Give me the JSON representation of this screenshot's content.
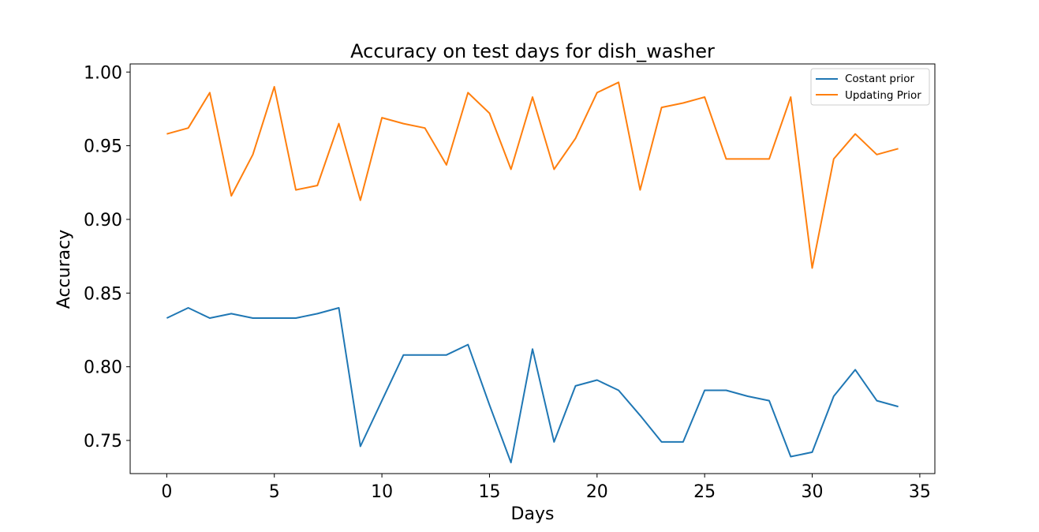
{
  "chart_data": {
    "type": "line",
    "title": "Accuracy on test days for dish_washer",
    "xlabel": "Days",
    "ylabel": "Accuracy",
    "xlim": [
      -1.7,
      35.7
    ],
    "ylim": [
      0.7275,
      1.0055
    ],
    "xticks": [
      0,
      5,
      10,
      15,
      20,
      25,
      30,
      35
    ],
    "yticks": [
      0.75,
      0.8,
      0.85,
      0.9,
      0.95,
      1.0
    ],
    "ytick_labels": [
      "0.75",
      "0.80",
      "0.85",
      "0.90",
      "0.95",
      "1.00"
    ],
    "grid": false,
    "legend_position": "top-right",
    "x": [
      0,
      1,
      2,
      3,
      4,
      5,
      6,
      7,
      8,
      9,
      10,
      11,
      12,
      13,
      14,
      15,
      16,
      17,
      18,
      19,
      20,
      21,
      22,
      23,
      24,
      25,
      26,
      27,
      28,
      29,
      30,
      31,
      32,
      33,
      34
    ],
    "series": [
      {
        "name": "Costant prior",
        "color": "#1f77b4",
        "values": [
          0.833,
          0.84,
          0.833,
          0.836,
          0.833,
          0.833,
          0.833,
          0.836,
          0.84,
          0.746,
          0.777,
          0.808,
          0.808,
          0.808,
          0.815,
          0.774,
          0.735,
          0.812,
          0.749,
          0.787,
          0.791,
          0.784,
          0.767,
          0.749,
          0.749,
          0.784,
          0.784,
          0.78,
          0.777,
          0.739,
          0.742,
          0.78,
          0.798,
          0.777,
          0.773
        ]
      },
      {
        "name": "Updating Prior",
        "color": "#ff7f0e",
        "values": [
          0.958,
          0.962,
          0.986,
          0.916,
          0.944,
          0.99,
          0.92,
          0.923,
          0.965,
          0.913,
          0.969,
          0.965,
          0.962,
          0.937,
          0.986,
          0.972,
          0.934,
          0.983,
          0.934,
          0.955,
          0.986,
          0.993,
          0.92,
          0.976,
          0.979,
          0.983,
          0.941,
          0.941,
          0.941,
          0.983,
          0.867,
          0.941,
          0.958,
          0.944,
          0.948
        ]
      }
    ]
  }
}
